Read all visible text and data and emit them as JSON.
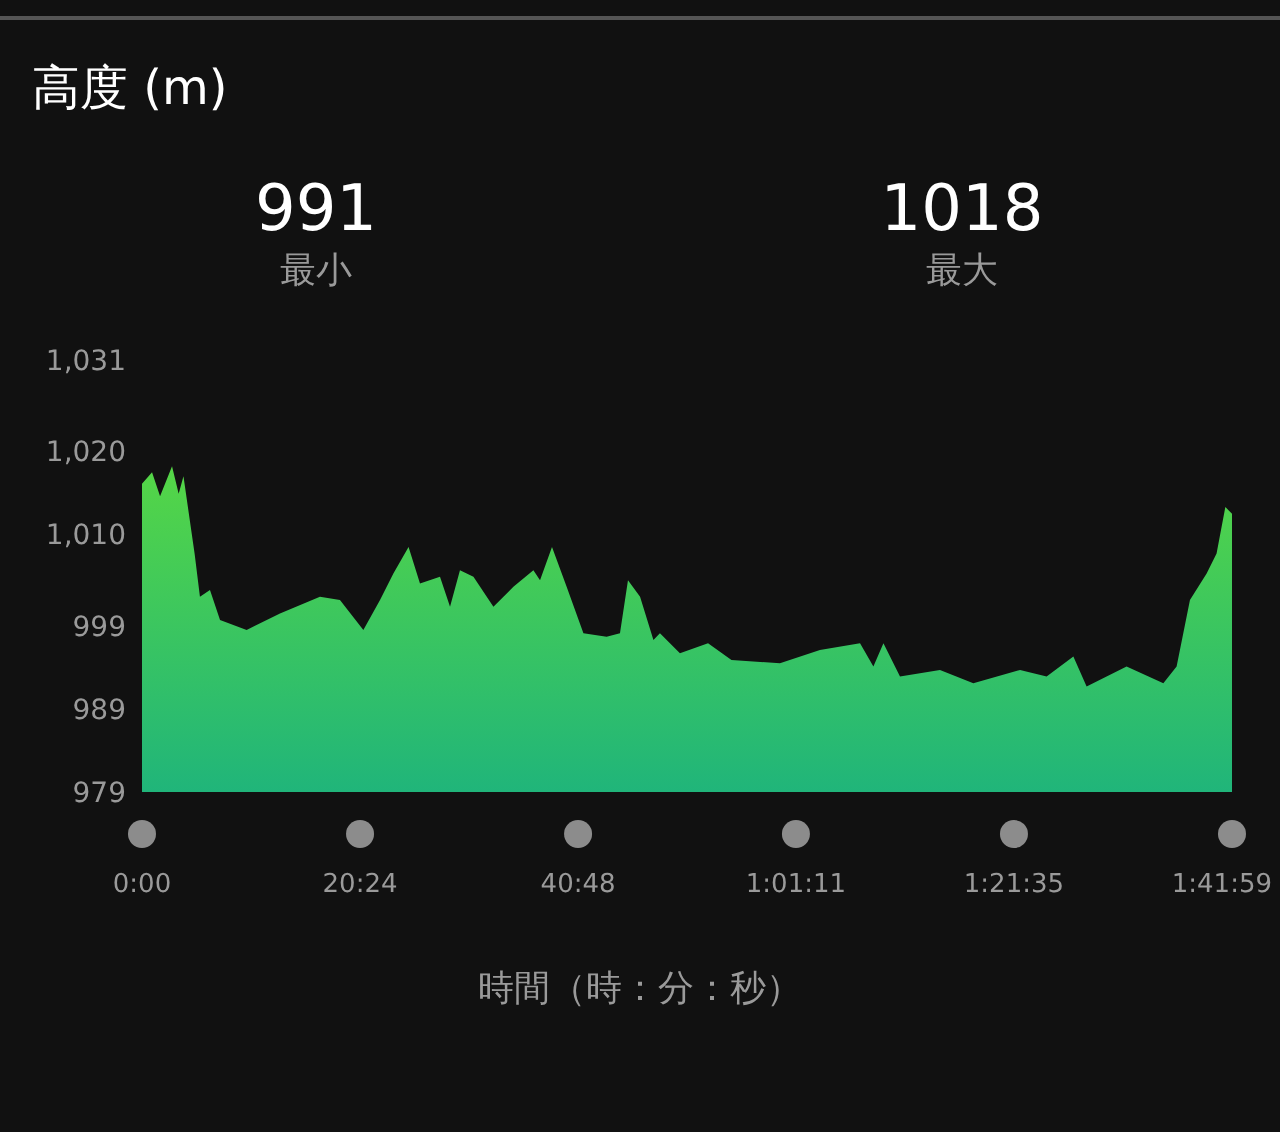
{
  "chart_data": {
    "type": "area",
    "title": "高度 (m)",
    "xlabel": "時間（時：分：秒）",
    "annotations": [
      "991",
      "最小",
      "1018",
      "最大"
    ],
    "x": [
      0,
      0.94,
      1.69,
      2.81,
      3.43,
      3.88,
      4.92,
      5.42,
      6.36,
      7.3,
      9.79,
      12.91,
      16.65,
      18.52,
      20.71,
      22.27,
      23.52,
      24.94,
      26.01,
      27.88,
      28.82,
      29.75,
      31.01,
      32.88,
      34.75,
      36.62,
      37.24,
      38.36,
      39.73,
      41.3,
      43.47,
      44.72,
      45.47,
      46.6,
      47.85,
      48.46,
      50.33,
      52.96,
      55.15,
      59.69,
      63.43,
      67.18,
      68.43,
      69.37,
      70.92,
      74.66,
      77.78,
      82.15,
      84.64,
      87.14,
      88.38,
      92.12,
      95.56,
      96.8,
      98.05,
      99.61,
      100.54,
      101.36,
      101.983
    ],
    "series": [
      {
        "color": "#55d646",
        "values": [
          1016.1,
          1017.5,
          1014.6,
          1018.2,
          1014.9,
          1017.0,
          1007.7,
          1002.5,
          1003.3,
          999.7,
          998.5,
          1000.5,
          1002.5,
          1002.1,
          998.5,
          1002.1,
          1005.3,
          1008.5,
          1004.1,
          1004.9,
          1001.3,
          1005.7,
          1004.9,
          1001.3,
          1003.7,
          1005.7,
          1004.5,
          1008.5,
          1003.7,
          998.1,
          997.7,
          998.1,
          1004.5,
          1002.5,
          997.3,
          998.1,
          995.7,
          996.9,
          994.9,
          994.5,
          996.1,
          996.9,
          994.1,
          996.9,
          992.9,
          993.7,
          992.1,
          993.7,
          992.9,
          995.3,
          991.7,
          994.1,
          992.1,
          994.1,
          1002.1,
          1005.3,
          1007.7,
          1013.3,
          1012.5
        ]
      }
    ],
    "xlim": [
      0,
      101.983
    ],
    "xticks": [
      {
        "value": 0,
        "label": "0:00"
      },
      {
        "value": 20.4,
        "label": "20:24"
      },
      {
        "value": 40.8,
        "label": "40:48"
      },
      {
        "value": 61.183,
        "label": "1:01:11"
      },
      {
        "value": 81.583,
        "label": "1:21:35"
      },
      {
        "value": 101.983,
        "label": "1:41:59"
      }
    ],
    "ylim": [
      979,
      1031
    ],
    "yticks": [
      979,
      989,
      999,
      {
        "value": 1010,
        "label": "1,010"
      },
      {
        "value": 1020,
        "label": "1,020"
      },
      {
        "value": 1031,
        "label": "1,031"
      }
    ],
    "grid": false,
    "legend": false
  }
}
